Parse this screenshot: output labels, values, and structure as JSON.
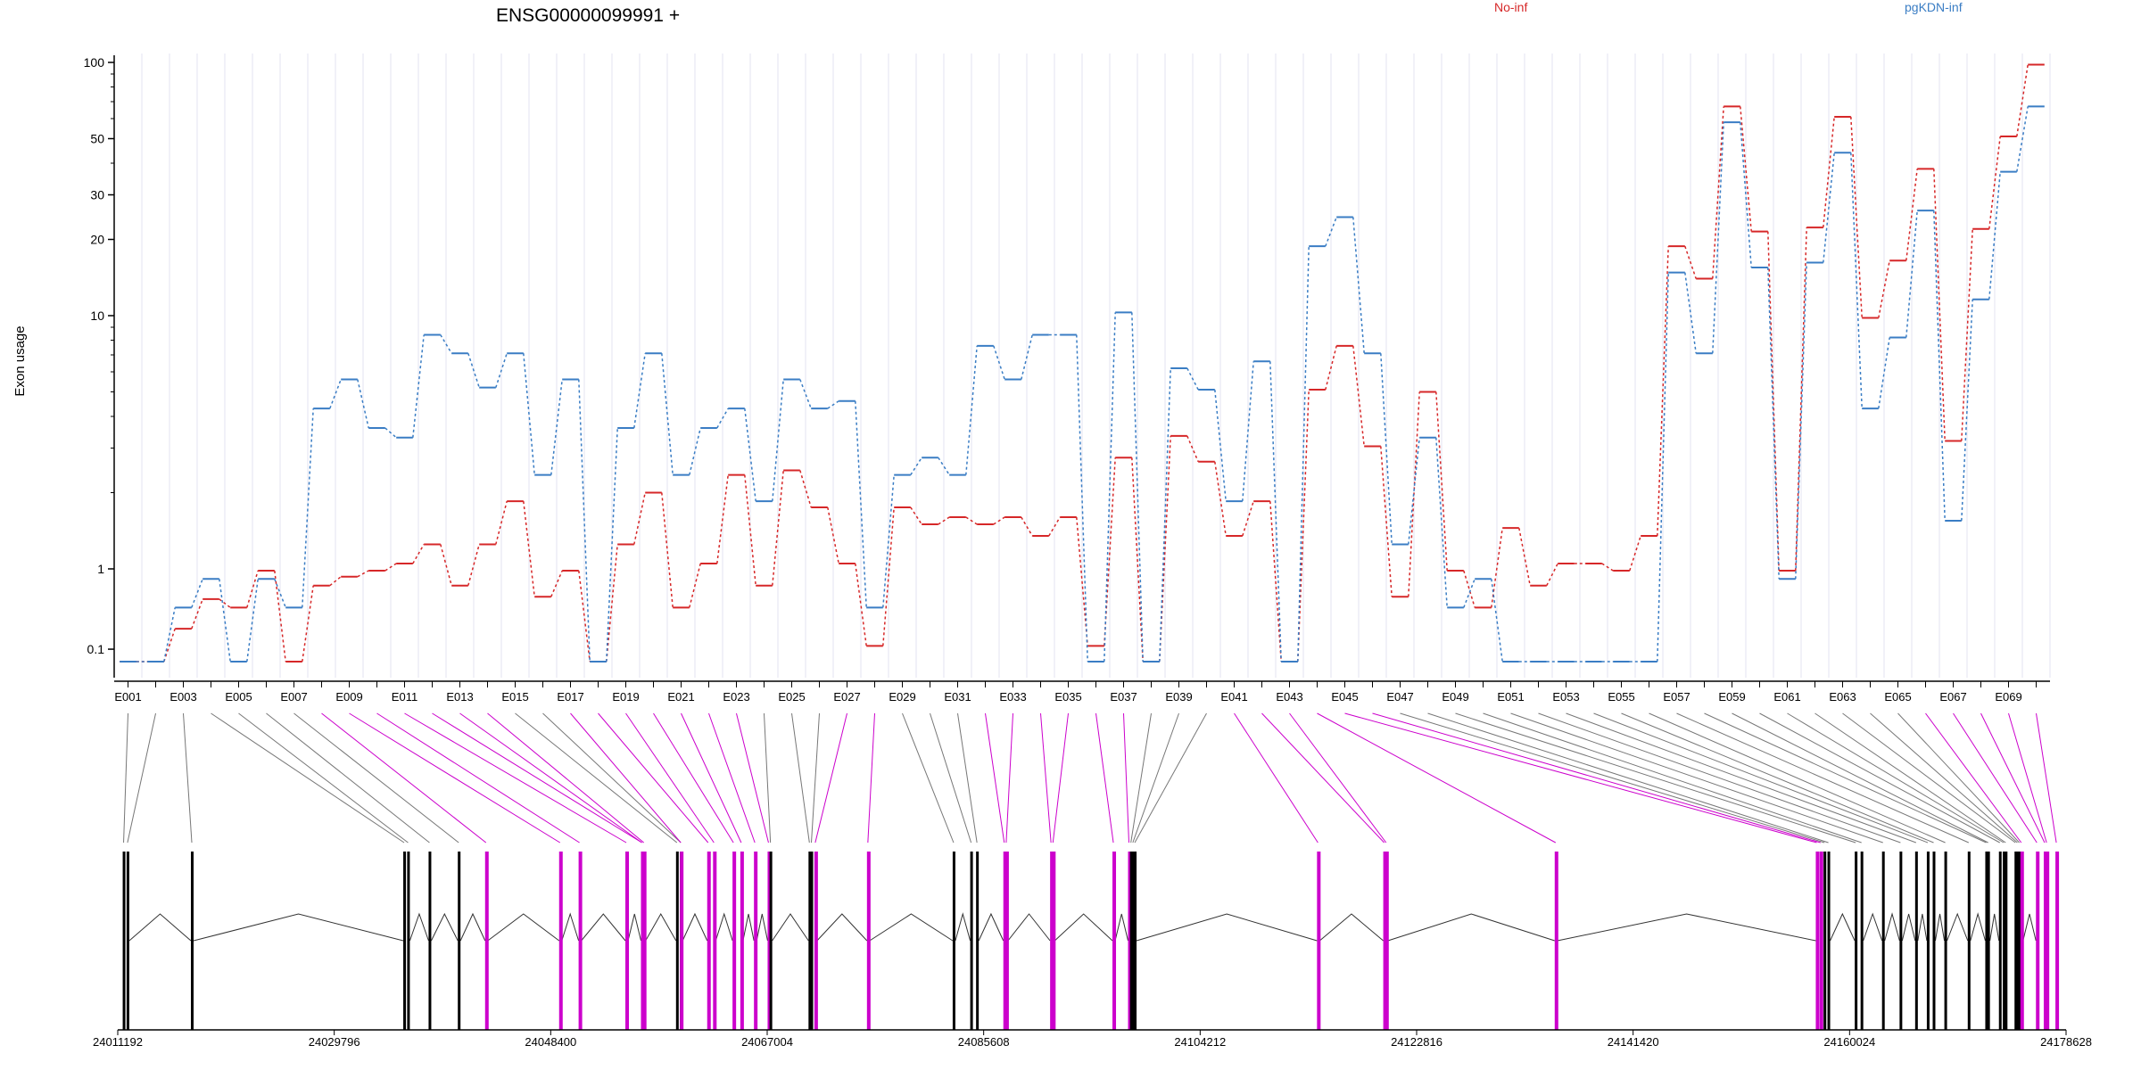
{
  "chart_data": {
    "type": "line",
    "title": "ENSG00000099991 +",
    "ylabel": "Exon usage",
    "xlabel": "",
    "yscale": "log",
    "ylim": [
      0.07,
      100
    ],
    "yticks": [
      100,
      50,
      30,
      20,
      10,
      1,
      0.1
    ],
    "ytick_labels": [
      "100",
      "50",
      "30",
      "20",
      "10",
      "1",
      "0.1"
    ],
    "grid": true,
    "legend_position": "top",
    "exon_labels_shown": [
      "E001",
      "E003",
      "E005",
      "E007",
      "E009",
      "E011",
      "E013",
      "E015",
      "E017",
      "E019",
      "E021",
      "E023",
      "E025",
      "E027",
      "E029",
      "E031",
      "E033",
      "E035",
      "E037",
      "E039",
      "E041",
      "E043",
      "E045",
      "E047",
      "E049",
      "E051",
      "E053",
      "E055",
      "E057",
      "E059",
      "E061",
      "E063",
      "E065",
      "E067",
      "E069"
    ],
    "exons": [
      "E001",
      "E002",
      "E003",
      "E004",
      "E005",
      "E006",
      "E007",
      "E008",
      "E009",
      "E010",
      "E011",
      "E012",
      "E013",
      "E014",
      "E015",
      "E016",
      "E017",
      "E018",
      "E019",
      "E020",
      "E021",
      "E022",
      "E023",
      "E024",
      "E025",
      "E026",
      "E027",
      "E028",
      "E029",
      "E030",
      "E031",
      "E032",
      "E033",
      "E034",
      "E035",
      "E036",
      "E037",
      "E038",
      "E039",
      "E040",
      "E041",
      "E042",
      "E043",
      "E044",
      "E045",
      "E046",
      "E047",
      "E048",
      "E049",
      "E050",
      "E051",
      "E052",
      "E053",
      "E054",
      "E055",
      "E056",
      "E057",
      "E058",
      "E059",
      "E060",
      "E061",
      "E062",
      "E063",
      "E064",
      "E065",
      "E066",
      "E067",
      "E068",
      "E069",
      "E070"
    ],
    "series": [
      {
        "name": "No-inf",
        "color": "#d62728",
        "values": [
          0.07,
          0.07,
          0.18,
          0.42,
          0.33,
          0.95,
          0.07,
          0.62,
          0.8,
          0.95,
          1.05,
          1.25,
          0.62,
          1.25,
          1.85,
          0.45,
          0.95,
          0.07,
          1.25,
          2.0,
          0.33,
          1.05,
          2.35,
          0.62,
          2.45,
          1.75,
          1.05,
          0.11,
          1.75,
          1.5,
          1.6,
          1.5,
          1.6,
          1.35,
          1.6,
          0.11,
          2.75,
          0.07,
          3.35,
          2.65,
          1.35,
          1.85,
          0.07,
          5.1,
          7.6,
          3.05,
          0.45,
          5.0,
          0.95,
          0.33,
          1.45,
          0.62,
          1.05,
          1.05,
          0.95,
          1.35,
          18.8,
          14.0,
          67,
          21.5,
          0.95,
          22.3,
          61,
          9.8,
          16.5,
          38,
          3.2,
          22,
          51,
          98
        ]
      },
      {
        "name": "pgKDN-inf",
        "color": "#3a7dc4",
        "values": [
          0.07,
          0.07,
          0.33,
          0.75,
          0.07,
          0.75,
          0.33,
          4.3,
          5.6,
          3.6,
          3.3,
          8.4,
          7.1,
          5.2,
          7.1,
          2.35,
          5.6,
          0.07,
          3.6,
          7.1,
          2.35,
          3.6,
          4.3,
          1.85,
          5.6,
          4.3,
          4.6,
          0.33,
          2.35,
          2.75,
          2.35,
          7.6,
          5.6,
          8.4,
          8.4,
          0.07,
          10.3,
          0.07,
          6.2,
          5.1,
          1.85,
          6.6,
          0.07,
          18.8,
          24.5,
          7.1,
          1.25,
          3.3,
          0.33,
          0.75,
          0.07,
          0.07,
          0.07,
          0.07,
          0.07,
          0.07,
          14.8,
          7.1,
          58,
          15.5,
          0.75,
          16.2,
          44,
          4.3,
          8.2,
          26,
          1.55,
          11.6,
          37,
          67
        ]
      }
    ],
    "genome_axis": {
      "range": [
        24011192,
        24178628
      ],
      "ticks": [
        24011192,
        24029796,
        24048400,
        24067004,
        24085608,
        24104212,
        24122816,
        24141420,
        24160024,
        24178628
      ],
      "tick_labels": [
        "24011192",
        "24029796",
        "24048400",
        "24067004",
        "24085608",
        "24104212",
        "24122816",
        "24141420",
        "24160024",
        "24178628"
      ]
    },
    "gene_model": {
      "exon_color": "#000000",
      "highlight_color": "#cc00cc",
      "significant_exons": [
        "E008",
        "E009",
        "E010",
        "E011",
        "E012",
        "E013",
        "E014",
        "E017",
        "E018",
        "E019",
        "E020",
        "E021",
        "E022",
        "E023",
        "E027",
        "E028",
        "E032",
        "E033",
        "E034",
        "E035",
        "E036",
        "E037",
        "E041",
        "E042",
        "E043",
        "E044",
        "E045",
        "E046",
        "E066",
        "E067",
        "E068",
        "E069",
        "E070"
      ]
    }
  }
}
